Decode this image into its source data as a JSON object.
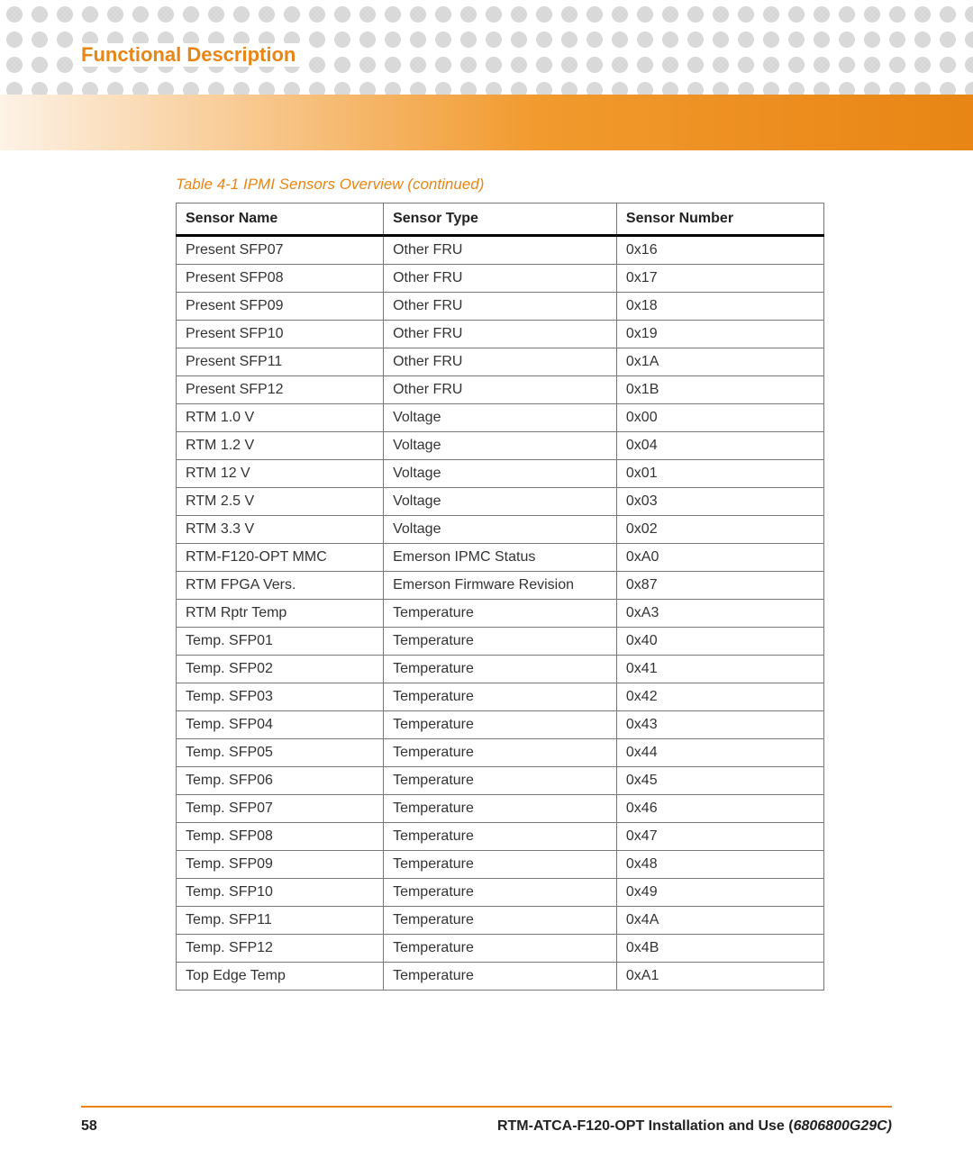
{
  "colors": {
    "accent": "#e88514",
    "section_title": "#e88514",
    "caption": "#e88514",
    "dot": "#d9d9d9",
    "header_gradient_start": "#fdf2e6",
    "header_gradient_mid": "#f29a2e",
    "header_gradient_end": "#e88514",
    "table_border": "#777777",
    "header_bottom_border": "#000000",
    "text": "#333333"
  },
  "typography": {
    "section_title_fontsize": 22,
    "caption_fontsize": 17,
    "table_fontsize": 16,
    "footer_fontsize": 16
  },
  "header": {
    "section_title": "Functional Description"
  },
  "table": {
    "caption": "Table 4-1 IPMI Sensors Overview (continued)",
    "columns": [
      "Sensor Name",
      "Sensor Type",
      "Sensor Number"
    ],
    "column_widths_pct": [
      32,
      36,
      32
    ],
    "rows": [
      [
        "Present SFP07",
        "Other FRU",
        "0x16"
      ],
      [
        "Present SFP08",
        "Other FRU",
        "0x17"
      ],
      [
        "Present SFP09",
        "Other FRU",
        "0x18"
      ],
      [
        "Present SFP10",
        "Other FRU",
        "0x19"
      ],
      [
        "Present SFP11",
        "Other FRU",
        "0x1A"
      ],
      [
        "Present SFP12",
        "Other FRU",
        "0x1B"
      ],
      [
        "RTM 1.0 V",
        "Voltage",
        "0x00"
      ],
      [
        "RTM 1.2 V",
        "Voltage",
        "0x04"
      ],
      [
        "RTM 12 V",
        "Voltage",
        "0x01"
      ],
      [
        "RTM 2.5 V",
        "Voltage",
        "0x03"
      ],
      [
        "RTM 3.3 V",
        "Voltage",
        "0x02"
      ],
      [
        "RTM-F120-OPT MMC",
        "Emerson IPMC Status",
        "0xA0"
      ],
      [
        "RTM FPGA Vers.",
        "Emerson Firmware Revision",
        "0x87"
      ],
      [
        "RTM Rptr Temp",
        "Temperature",
        "0xA3"
      ],
      [
        "Temp. SFP01",
        "Temperature",
        "0x40"
      ],
      [
        "Temp. SFP02",
        "Temperature",
        "0x41"
      ],
      [
        "Temp. SFP03",
        "Temperature",
        "0x42"
      ],
      [
        "Temp. SFP04",
        "Temperature",
        "0x43"
      ],
      [
        "Temp. SFP05",
        "Temperature",
        "0x44"
      ],
      [
        "Temp. SFP06",
        "Temperature",
        "0x45"
      ],
      [
        "Temp. SFP07",
        "Temperature",
        "0x46"
      ],
      [
        "Temp. SFP08",
        "Temperature",
        "0x47"
      ],
      [
        "Temp. SFP09",
        "Temperature",
        "0x48"
      ],
      [
        "Temp. SFP10",
        "Temperature",
        "0x49"
      ],
      [
        "Temp. SFP11",
        "Temperature",
        "0x4A"
      ],
      [
        "Temp. SFP12",
        "Temperature",
        "0x4B"
      ],
      [
        "Top Edge Temp",
        "Temperature",
        "0xA1"
      ]
    ]
  },
  "footer": {
    "page_number": "58",
    "doc_title": "RTM-ATCA-F120-OPT Installation and Use (",
    "doc_code": "6806800G29C",
    "doc_title_end": ")"
  }
}
